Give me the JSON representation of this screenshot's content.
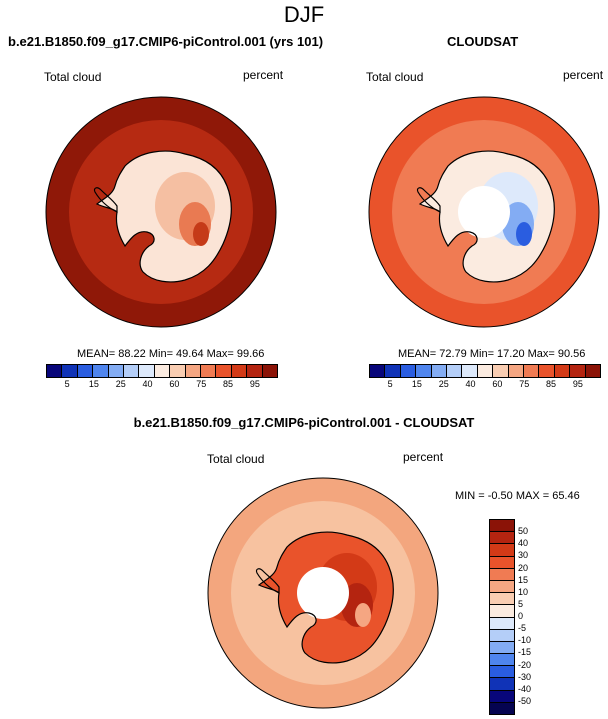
{
  "figure": {
    "title": "DJF"
  },
  "panels": [
    {
      "title": "b.e21.B1850.f09_g17.CMIP6-piControl.001 (yrs 101)",
      "left_label": "Total cloud",
      "right_label": "percent",
      "stats": "MEAN= 88.22  Min= 49.64  Max= 99.66",
      "colorbar": {
        "ticks": [
          "5",
          "15",
          "25",
          "40",
          "60",
          "75",
          "85",
          "95"
        ],
        "colors": [
          "#08067a",
          "#1033b7",
          "#2a5de0",
          "#4f85ee",
          "#83acf3",
          "#b4cef8",
          "#dde9fb",
          "#fbebe0",
          "#f9cdb2",
          "#f5a682",
          "#f07b53",
          "#e9532b",
          "#d33a17",
          "#b42410",
          "#8b1307"
        ]
      },
      "map": {
        "ocean": "#8f1808",
        "ring": "#b62a12",
        "outline": "#000000",
        "interior": [
          "#fbe4d6",
          "#f5bfa2",
          "#e97a52",
          "#c53a18"
        ],
        "has_hole": false
      }
    },
    {
      "title": "CLOUDSAT",
      "left_label": "Total cloud",
      "right_label": "percent",
      "stats": "MEAN= 72.79  Min= 17.20  Max= 90.56",
      "colorbar": {
        "ticks": [
          "5",
          "15",
          "25",
          "40",
          "60",
          "75",
          "85",
          "95"
        ],
        "colors": [
          "#08067a",
          "#1033b7",
          "#2a5de0",
          "#4f85ee",
          "#83acf3",
          "#b4cef8",
          "#dde9fb",
          "#fbebe0",
          "#f9cdb2",
          "#f5a682",
          "#f07b53",
          "#e9532b",
          "#d33a17",
          "#b42410",
          "#8b1307"
        ]
      },
      "map": {
        "ocean": "#e9532b",
        "ring": "#f07b53",
        "outline": "#000000",
        "interior": [
          "#fbebe0",
          "#dde9fb",
          "#83acf3",
          "#2a5de0"
        ],
        "has_hole": true
      }
    },
    {
      "title": "b.e21.B1850.f09_g17.CMIP6-piControl.001 - CLOUDSAT",
      "left_label": "Total cloud",
      "right_label": "percent",
      "stats": "MIN = -0.50 MAX = 65.46",
      "colorbar": {
        "ticks": [
          "50",
          "40",
          "30",
          "20",
          "15",
          "10",
          "5",
          "0",
          "-5",
          "-10",
          "-15",
          "-20",
          "-30",
          "-40",
          "-50"
        ],
        "colors": [
          "#8b1307",
          "#b42410",
          "#d33a17",
          "#e9532b",
          "#f07b53",
          "#f5a682",
          "#f9cdb2",
          "#fbebe0",
          "#dde9fb",
          "#b4cef8",
          "#83acf3",
          "#4f85ee",
          "#2a5de0",
          "#1033b7",
          "#08067a",
          "#050450"
        ]
      },
      "map": {
        "ocean": "#f3a67e",
        "ring": "#f7c2a0",
        "outline": "#000000",
        "interior": [
          "#e9532b",
          "#d33a17",
          "#b42410",
          "#f5a682"
        ],
        "has_hole": true
      }
    }
  ]
}
